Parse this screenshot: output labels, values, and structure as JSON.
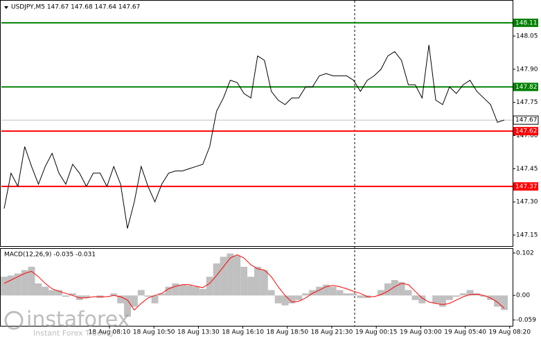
{
  "chart_data": [
    {
      "type": "line",
      "title": "USDJPY,M5  147.67 147.68 147.64 147.67",
      "color": "#000000",
      "ylim": [
        147.1,
        148.21
      ],
      "yticks": [
        148.05,
        {
          "value": 147.9,
          "label": "147.90"
        },
        147.75,
        {
          "value": 147.6,
          "label": "147.60"
        },
        147.45,
        {
          "value": 147.3,
          "label": "147.30"
        },
        147.15
      ],
      "values": [
        147.27,
        147.43,
        147.37,
        147.55,
        147.46,
        147.38,
        147.46,
        147.52,
        147.43,
        147.38,
        147.47,
        147.43,
        147.37,
        147.43,
        147.43,
        147.37,
        147.46,
        147.38,
        147.18,
        147.3,
        147.46,
        147.37,
        147.3,
        147.38,
        147.43,
        147.44,
        147.44,
        147.45,
        147.46,
        147.47,
        147.55,
        147.71,
        147.77,
        147.85,
        147.84,
        147.79,
        147.77,
        147.96,
        147.94,
        147.8,
        147.76,
        147.74,
        147.77,
        147.77,
        147.82,
        147.82,
        147.87,
        147.88,
        147.87,
        147.87,
        147.87,
        147.85,
        147.8,
        147.85,
        147.87,
        147.9,
        147.96,
        147.98,
        147.94,
        147.83,
        147.83,
        147.77,
        148.01,
        147.76,
        147.74,
        147.82,
        147.79,
        147.83,
        147.85,
        147.8,
        147.77,
        147.74,
        147.66,
        147.67
      ],
      "levels": [
        {
          "value": 148.11,
          "color": "#008000"
        },
        {
          "value": 147.82,
          "color": "#008000"
        },
        {
          "value": 147.62,
          "color": "#ff0000"
        },
        {
          "value": 147.37,
          "color": "#ff0000"
        }
      ],
      "current_price": 147.67
    },
    {
      "type": "macd",
      "title": "MACD(12,26,9) -0.035 -0.031",
      "ylim": [
        -0.073,
        0.112
      ],
      "yticks": [
        0.102,
        {
          "value": 0,
          "label": "0.00"
        },
        -0.059
      ],
      "series": [
        {
          "color": "#c0c0c0",
          "values": [
            0.045,
            0.048,
            0.053,
            0.061,
            0.069,
            0.029,
            0.021,
            0.013,
            0.013,
            -0.003,
            0.005,
            -0.011,
            -0.006,
            0,
            -0.006,
            0,
            0.005,
            -0.019,
            -0.051,
            -0.027,
            0.013,
            -0.003,
            -0.019,
            0.005,
            0.021,
            0.029,
            0.026,
            0.024,
            0.021,
            0.016,
            0.045,
            0.077,
            0.093,
            0.101,
            0.096,
            0.069,
            0.045,
            0.069,
            0.061,
            0.013,
            -0.019,
            -0.024,
            -0.019,
            -0.011,
            0.005,
            0.013,
            0.021,
            0.026,
            0.021,
            0.013,
            0.005,
            0.005,
            -0.006,
            -0.006,
            0,
            0.013,
            0.029,
            0.037,
            0.032,
            0.013,
            -0.011,
            -0.019,
            0,
            -0.019,
            -0.027,
            -0.011,
            -0.003,
            0.005,
            0.013,
            0.005,
            -0.003,
            -0.011,
            -0.027,
            -0.035
          ]
        },
        {
          "color": "#ff0000",
          "values": [
            0.029,
            0.037,
            0.045,
            0.053,
            0.058,
            0.045,
            0.029,
            0.016,
            0.01,
            0.005,
            0,
            -0.006,
            -0.006,
            -0.003,
            -0.003,
            -0.003,
            0,
            -0.003,
            -0.011,
            -0.035,
            -0.019,
            -0.006,
            0,
            0.005,
            0.016,
            0.022,
            0.026,
            0.026,
            0.022,
            0.019,
            0.029,
            0.048,
            0.069,
            0.09,
            0.098,
            0.09,
            0.074,
            0.064,
            0.061,
            0.045,
            0.021,
            0,
            -0.016,
            -0.014,
            -0.006,
            0.005,
            0.013,
            0.021,
            0.024,
            0.021,
            0.016,
            0.01,
            0.005,
            -0.003,
            -0.003,
            0.002,
            0.01,
            0.021,
            0.029,
            0.026,
            0.01,
            -0.006,
            -0.016,
            -0.019,
            -0.022,
            -0.019,
            -0.011,
            -0.003,
            0.002,
            0.003,
            0,
            -0.006,
            -0.016,
            -0.031
          ]
        }
      ]
    }
  ],
  "time_axis": {
    "labels": [
      "18 Aug 08:10",
      "18 Aug 10:50",
      "18 Aug 13:30",
      "18 Aug 16:10",
      "18 Aug 18:50",
      "18 Aug 21:30",
      "19 Aug 00:15",
      "19 Aug 03:00",
      "19 Aug 05:40",
      "19 Aug 08:20"
    ]
  },
  "watermark": {
    "brand": "instaforex",
    "tagline": "Instant Forex Trading"
  }
}
